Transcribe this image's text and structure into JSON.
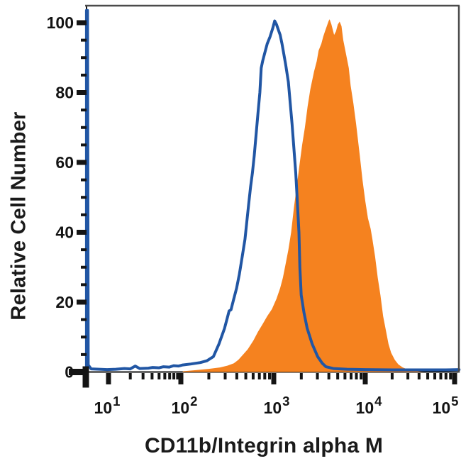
{
  "chart_data": {
    "type": "line",
    "subtype": "flow-cytometry-histogram-overlay",
    "title": "",
    "xlabel": "CD11b/Integrin alpha M",
    "ylabel": "Relative Cell Number",
    "x_scale": "log10",
    "xlim_log10": [
      0.695,
      5.05
    ],
    "ylim": [
      0,
      105
    ],
    "grid": false,
    "legend": "none",
    "x_ticks": [
      {
        "base": "10",
        "exp": "1"
      },
      {
        "base": "10",
        "exp": "2"
      },
      {
        "base": "10",
        "exp": "3"
      },
      {
        "base": "10",
        "exp": "4"
      },
      {
        "base": "10",
        "exp": "5"
      }
    ],
    "x_tick_exponents": [
      1,
      2,
      3,
      4,
      5
    ],
    "x_minor_subdivisions": [
      2,
      3,
      4,
      5,
      6,
      7,
      8,
      9
    ],
    "y_ticks": [
      0,
      20,
      40,
      60,
      80,
      100
    ],
    "y_minor_step": 5,
    "colors": {
      "open_histogram": "#2156a4",
      "filled_histogram": "#f5821f",
      "frame": "#4b4b4b",
      "axis": "#141414",
      "background": "#ffffff"
    },
    "series": [
      {
        "name": "isotype-control-open-histogram",
        "style": "open",
        "color": "#2156a4",
        "points_log10x_value": [
          [
            0.695,
            0
          ],
          [
            0.695,
            103.5
          ],
          [
            0.71,
            103.5
          ],
          [
            0.72,
            2
          ],
          [
            0.76,
            0.9
          ],
          [
            0.98,
            0.7
          ],
          [
            1.1,
            0.8
          ],
          [
            1.22,
            1.0
          ],
          [
            1.3,
            0.9
          ],
          [
            1.37,
            1.7
          ],
          [
            1.43,
            1.0
          ],
          [
            1.55,
            1.1
          ],
          [
            1.61,
            1.3
          ],
          [
            1.7,
            1.2
          ],
          [
            1.76,
            1.5
          ],
          [
            1.84,
            1.4
          ],
          [
            1.9,
            1.8
          ],
          [
            1.97,
            1.7
          ],
          [
            2.02,
            2.0
          ],
          [
            2.11,
            2.3
          ],
          [
            2.21,
            2.7
          ],
          [
            2.28,
            3.2
          ],
          [
            2.35,
            4.4
          ],
          [
            2.41,
            8
          ],
          [
            2.47,
            12.5
          ],
          [
            2.5,
            15.5
          ],
          [
            2.52,
            17.5
          ],
          [
            2.54,
            17.8
          ],
          [
            2.57,
            21
          ],
          [
            2.6,
            24
          ],
          [
            2.63,
            28
          ],
          [
            2.66,
            33
          ],
          [
            2.69,
            38
          ],
          [
            2.71,
            43
          ],
          [
            2.73,
            48
          ],
          [
            2.75,
            53
          ],
          [
            2.77,
            57
          ],
          [
            2.79,
            62
          ],
          [
            2.81,
            68
          ],
          [
            2.83,
            74
          ],
          [
            2.85,
            80
          ],
          [
            2.865,
            87
          ],
          [
            2.88,
            89
          ],
          [
            2.9,
            91
          ],
          [
            2.93,
            94
          ],
          [
            2.96,
            96
          ],
          [
            2.99,
            98.5
          ],
          [
            3.01,
            100.5
          ],
          [
            3.03,
            99.5
          ],
          [
            3.05,
            98
          ],
          [
            3.07,
            96.5
          ],
          [
            3.09,
            94
          ],
          [
            3.11,
            91
          ],
          [
            3.13,
            88
          ],
          [
            3.16,
            83
          ],
          [
            3.18,
            77
          ],
          [
            3.2,
            71
          ],
          [
            3.22,
            64
          ],
          [
            3.24,
            57
          ],
          [
            3.255,
            50
          ],
          [
            3.265,
            45
          ],
          [
            3.275,
            40
          ],
          [
            3.285,
            30
          ],
          [
            3.3,
            22
          ],
          [
            3.33,
            17
          ],
          [
            3.365,
            12.5
          ],
          [
            3.42,
            8
          ],
          [
            3.48,
            4.4
          ],
          [
            3.53,
            2.5
          ],
          [
            3.57,
            1.5
          ],
          [
            3.65,
            1.0
          ],
          [
            3.8,
            0.8
          ],
          [
            4.0,
            0.7
          ],
          [
            4.3,
            0.6
          ],
          [
            4.6,
            0.6
          ],
          [
            4.9,
            0.6
          ],
          [
            5.05,
            0.7
          ]
        ]
      },
      {
        "name": "cd11b-stained-filled-histogram",
        "style": "filled",
        "color": "#f5821f",
        "points_log10x_value": [
          [
            2.02,
            0.2
          ],
          [
            2.15,
            0.5
          ],
          [
            2.3,
            0.9
          ],
          [
            2.42,
            1.3
          ],
          [
            2.5,
            1.8
          ],
          [
            2.57,
            2.5
          ],
          [
            2.62,
            3.5
          ],
          [
            2.67,
            5
          ],
          [
            2.72,
            6.5
          ],
          [
            2.78,
            9
          ],
          [
            2.83,
            11.5
          ],
          [
            2.88,
            13.7
          ],
          [
            2.93,
            16
          ],
          [
            2.98,
            18
          ],
          [
            3.03,
            21
          ],
          [
            3.07,
            24
          ],
          [
            3.1,
            27
          ],
          [
            3.13,
            31
          ],
          [
            3.16,
            35
          ],
          [
            3.19,
            40
          ],
          [
            3.22,
            47
          ],
          [
            3.25,
            53
          ],
          [
            3.28,
            59
          ],
          [
            3.31,
            65
          ],
          [
            3.34,
            70
          ],
          [
            3.37,
            76
          ],
          [
            3.4,
            81
          ],
          [
            3.44,
            86
          ],
          [
            3.47,
            89
          ],
          [
            3.49,
            92
          ],
          [
            3.52,
            94
          ],
          [
            3.54,
            96
          ],
          [
            3.56,
            97.5
          ],
          [
            3.58,
            99
          ],
          [
            3.6,
            100.5
          ],
          [
            3.61,
            101
          ],
          [
            3.63,
            99.5
          ],
          [
            3.645,
            98
          ],
          [
            3.66,
            96.5
          ],
          [
            3.68,
            97.5
          ],
          [
            3.7,
            99.5
          ],
          [
            3.72,
            100.3
          ],
          [
            3.74,
            99
          ],
          [
            3.76,
            95
          ],
          [
            3.79,
            91
          ],
          [
            3.82,
            87
          ],
          [
            3.84,
            82
          ],
          [
            3.87,
            77
          ],
          [
            3.9,
            71
          ],
          [
            3.94,
            62
          ],
          [
            3.97,
            55
          ],
          [
            4.0,
            49
          ],
          [
            4.03,
            44
          ],
          [
            4.06,
            41
          ],
          [
            4.08,
            38
          ],
          [
            4.11,
            33
          ],
          [
            4.14,
            27
          ],
          [
            4.17,
            22
          ],
          [
            4.2,
            16
          ],
          [
            4.23,
            12
          ],
          [
            4.26,
            8
          ],
          [
            4.29,
            5.5
          ],
          [
            4.33,
            3.5
          ],
          [
            4.37,
            2.2
          ],
          [
            4.42,
            1.3
          ],
          [
            4.48,
            0.7
          ],
          [
            4.55,
            0.3
          ],
          [
            4.62,
            0.1
          ],
          [
            4.66,
            0
          ]
        ]
      }
    ]
  }
}
